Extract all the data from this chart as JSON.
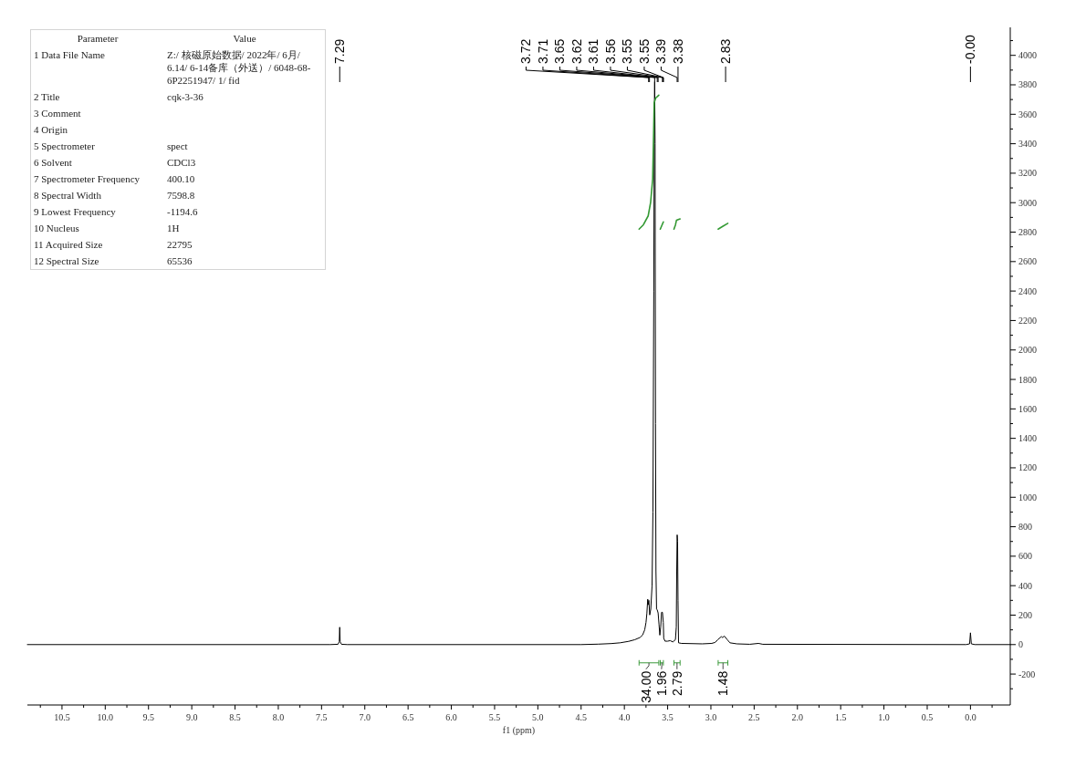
{
  "chart_data": [
    {
      "type": "line",
      "xlabel": "f1 (ppm)",
      "series": [
        {
          "color": "#000000",
          "x": [
            10.9,
            7.4,
            7.31,
            7.295,
            7.29,
            7.285,
            7.27,
            7.2,
            4.5,
            4.3,
            4.15,
            4.05,
            3.95,
            3.88,
            3.82,
            3.79,
            3.765,
            3.75,
            3.74,
            3.73,
            3.725,
            3.717,
            3.707,
            3.695,
            3.68,
            3.67,
            3.66,
            3.655,
            3.65,
            3.645,
            3.64,
            3.635,
            3.628,
            3.62,
            3.61,
            3.6,
            3.59,
            3.58,
            3.57,
            3.56,
            3.55,
            3.545,
            3.53,
            3.5,
            3.47,
            3.44,
            3.41,
            3.4,
            3.395,
            3.39,
            3.385,
            3.38,
            3.374,
            3.34,
            3.1,
            2.99,
            2.95,
            2.92,
            2.88,
            2.865,
            2.845,
            2.81,
            2.78,
            2.7,
            2.55,
            2.45,
            2.4,
            0.05,
            0.01,
            0,
            -0.01,
            -0.05,
            -0.46
          ],
          "values": [
            0,
            0,
            2,
            20,
            118,
            20,
            2,
            0,
            0,
            3,
            7,
            12,
            22,
            33,
            48,
            64,
            100,
            150,
            210,
            308,
            270,
            300,
            201,
            240,
            400,
            900,
            2400,
            3500,
            3820,
            3400,
            1500,
            500,
            241,
            235,
            215,
            140,
            64,
            120,
            219,
            219,
            150,
            43,
            23,
            23,
            27,
            18,
            33,
            120,
            500,
            745,
            700,
            300,
            12,
            8,
            5,
            8,
            15,
            33,
            54,
            48,
            58,
            33,
            12,
            5,
            2,
            8,
            2,
            0,
            5,
            80,
            5,
            0,
            0
          ]
        },
        {
          "color": "#339933",
          "x": [
            3.83,
            3.78,
            3.725,
            3.697,
            3.673,
            3.662,
            3.655,
            3.638,
            3.602
          ],
          "values": [
            2820,
            2850,
            2910,
            3000,
            3160,
            3470,
            3680,
            3710,
            3730
          ]
        },
        {
          "color": "#329a34",
          "x": [
            3.585,
            3.567,
            3.549
          ],
          "values": [
            2820,
            2845,
            2870
          ]
        },
        {
          "color": "#349832",
          "x": [
            3.427,
            3.409,
            3.398,
            3.356
          ],
          "values": [
            2820,
            2850,
            2880,
            2890
          ]
        },
        {
          "color": "#359b35",
          "x": [
            2.916,
            2.86,
            2.804
          ],
          "values": [
            2820,
            2840,
            2860
          ]
        }
      ],
      "xlim": [
        10.9,
        -0.46
      ],
      "xticks": [
        {
          "value": 10.75,
          "label": null
        },
        10.5,
        {
          "value": 10.25,
          "label": null
        },
        {
          "value": 10,
          "label": "10.0"
        },
        {
          "value": 9.75,
          "label": null
        },
        9.5,
        {
          "value": 9.25,
          "label": null
        },
        {
          "value": 9,
          "label": "9.0"
        },
        {
          "value": 8.75,
          "label": null
        },
        8.5,
        {
          "value": 8.25,
          "label": null
        },
        {
          "value": 8,
          "label": "8.0"
        },
        {
          "value": 7.75,
          "label": null
        },
        7.5,
        {
          "value": 7.25,
          "label": null
        },
        {
          "value": 7,
          "label": "7.0"
        },
        {
          "value": 6.75,
          "label": null
        },
        6.5,
        {
          "value": 6.25,
          "label": null
        },
        {
          "value": 6,
          "label": "6.0"
        },
        {
          "value": 5.75,
          "label": null
        },
        5.5,
        {
          "value": 5.25,
          "label": null
        },
        {
          "value": 5,
          "label": "5.0"
        },
        {
          "value": 4.75,
          "label": null
        },
        4.5,
        {
          "value": 4.25,
          "label": null
        },
        {
          "value": 4,
          "label": "4.0"
        },
        {
          "value": 3.75,
          "label": null
        },
        3.5,
        {
          "value": 3.25,
          "label": null
        },
        {
          "value": 3,
          "label": "3.0"
        },
        {
          "value": 2.75,
          "label": null
        },
        2.5,
        {
          "value": 2.25,
          "label": null
        },
        {
          "value": 2,
          "label": "2.0"
        },
        {
          "value": 1.75,
          "label": null
        },
        1.5,
        {
          "value": 1.25,
          "label": null
        },
        {
          "value": 1,
          "label": "1.0"
        },
        {
          "value": 0.75,
          "label": null
        },
        0.5,
        {
          "value": 0.25,
          "label": null
        },
        {
          "value": 0,
          "label": "0.0"
        },
        {
          "value": -0.25,
          "label": null
        }
      ],
      "ylim": [
        -410,
        4190
      ],
      "yticks": [
        {
          "value": -300,
          "label": null
        },
        -200,
        {
          "value": -100,
          "label": null
        },
        0,
        {
          "value": 100,
          "label": null
        },
        200,
        {
          "value": 300,
          "label": null
        },
        400,
        {
          "value": 500,
          "label": null
        },
        600,
        {
          "value": 700,
          "label": null
        },
        800,
        {
          "value": 900,
          "label": null
        },
        1000,
        {
          "value": 1100,
          "label": null
        },
        1200,
        {
          "value": 1300,
          "label": null
        },
        1400,
        {
          "value": 1500,
          "label": null
        },
        1600,
        {
          "value": 1700,
          "label": null
        },
        1800,
        {
          "value": 1900,
          "label": null
        },
        2000,
        {
          "value": 2100,
          "label": null
        },
        2200,
        {
          "value": 2300,
          "label": null
        },
        2400,
        {
          "value": 2500,
          "label": null
        },
        2600,
        {
          "value": 2700,
          "label": null
        },
        2800,
        {
          "value": 2900,
          "label": null
        },
        3000,
        {
          "value": 3100,
          "label": null
        },
        3200,
        {
          "value": 3300,
          "label": null
        },
        3400,
        {
          "value": 3500,
          "label": null
        },
        3600,
        {
          "value": 3700,
          "label": null
        },
        3800,
        {
          "value": 3900,
          "label": null
        },
        4000,
        {
          "value": 4100,
          "label": null
        }
      ],
      "annotations": [
        {
          "text": "7.29",
          "x": 7.29
        },
        {
          "text": "3.72",
          "x": 3.72
        },
        {
          "text": "3.71",
          "x": 3.71
        },
        {
          "text": "3.65",
          "x": 3.65
        },
        {
          "text": "3.62",
          "x": 3.62
        },
        {
          "text": "3.61",
          "x": 3.61
        },
        {
          "text": "3.56",
          "x": 3.56
        },
        {
          "text": "3.55",
          "x": 3.55
        },
        {
          "text": "3.55",
          "x": 3.55
        },
        {
          "text": "3.39",
          "x": 3.39
        },
        {
          "text": "3.38",
          "x": 3.38
        },
        {
          "text": "2.83",
          "x": 2.83
        },
        {
          "text": "-0.00",
          "x": 0
        },
        "34.00",
        "1.96",
        "2.79",
        "1.48"
      ]
    },
    {
      "type": "other",
      "annotations": [
        "Parameter\tValue",
        "1 Data File Name\tZ:/ 核磁原始数据/ 2022年/ 6月/ 6.14/ 6-14备库（外送）/ 6048-68-6P2251947/ 1/ fid",
        "2 Title\tcqk-3-36",
        "3 Comment",
        "4 Origin",
        "5 Spectrometer\tspect",
        "6 Solvent\tCDCl3",
        "7 Spectrometer Frequency\t400.10",
        "8 Spectral Width\t7598.8",
        "9 Lowest Frequency\t-1194.6",
        "10 Nucleus\t1H",
        "11 Acquired Size\t22795",
        "12 Spectral Size\t65536"
      ]
    }
  ]
}
